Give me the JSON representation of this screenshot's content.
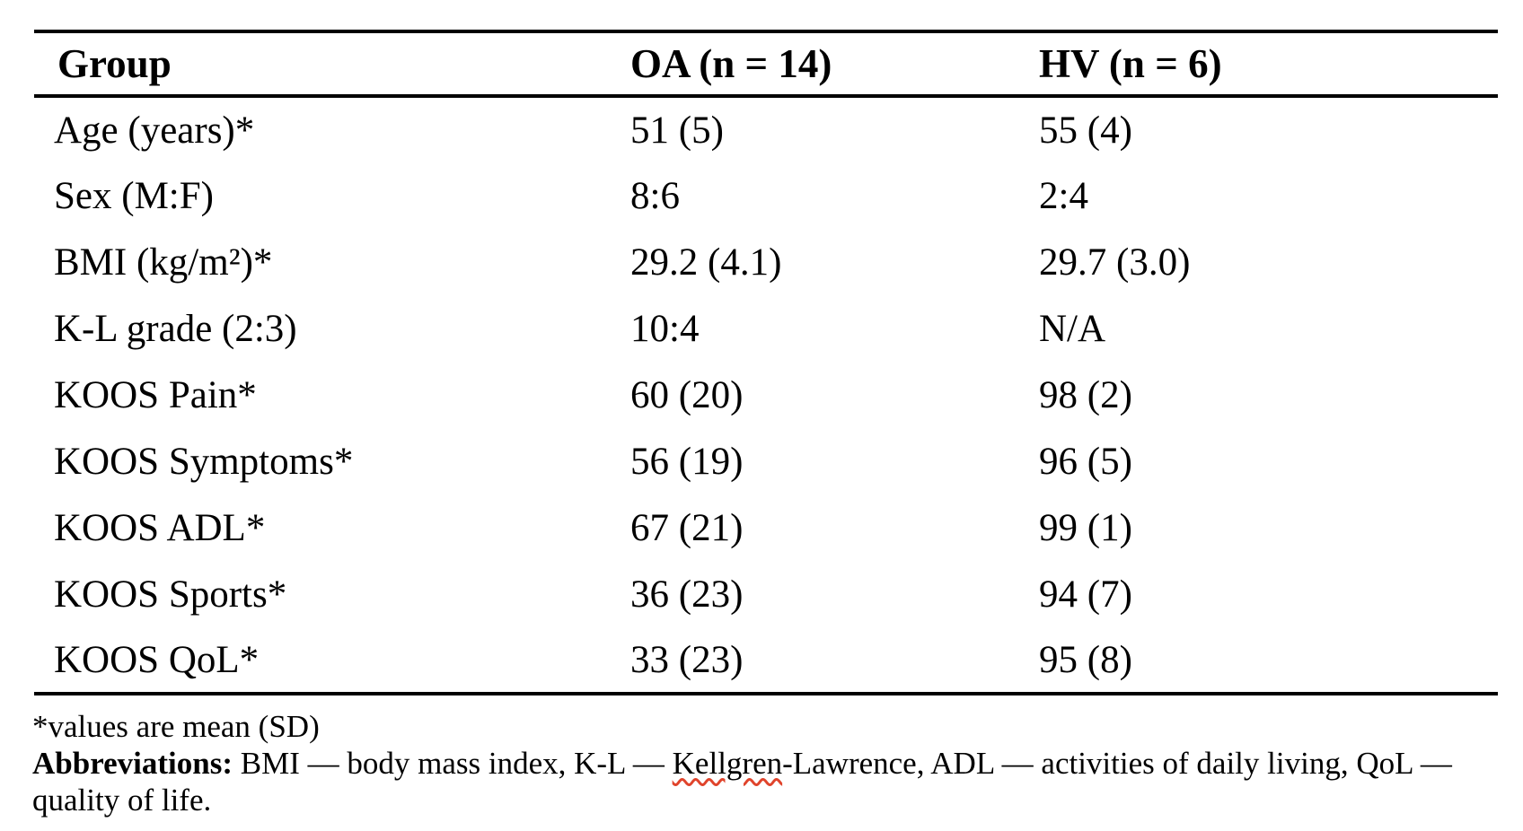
{
  "table": {
    "columns": [
      {
        "label": "Group"
      },
      {
        "label": "OA (n = 14)"
      },
      {
        "label": "HV (n = 6)"
      }
    ],
    "rows": [
      {
        "label": "Age (years)*",
        "oa": "51 (5)",
        "hv": "55 (4)"
      },
      {
        "label": "Sex (M:F)",
        "oa": "8:6",
        "hv": "2:4"
      },
      {
        "label": "BMI (kg/m²)*",
        "oa": "29.2 (4.1)",
        "hv": "29.7 (3.0)"
      },
      {
        "label": "K-L grade (2:3)",
        "oa": "10:4",
        "hv": "N/A"
      },
      {
        "label": "KOOS Pain*",
        "oa": "60 (20)",
        "hv": "98 (2)"
      },
      {
        "label": "KOOS Symptoms*",
        "oa": "56 (19)",
        "hv": "96 (5)"
      },
      {
        "label": "KOOS ADL*",
        "oa": "67 (21)",
        "hv": "99 (1)"
      },
      {
        "label": "KOOS Sports*",
        "oa": "36 (23)",
        "hv": "94 (7)"
      },
      {
        "label": "KOOS QoL*",
        "oa": "33 (23)",
        "hv": "95 (8)"
      }
    ]
  },
  "footnotes": {
    "mean_sd": "*values are mean (SD)",
    "abbreviations_label": "Abbreviations:",
    "abbr_part1": " BMI — body mass index, K-L — ",
    "flagged_word": "Kellgren",
    "abbr_part2": "-Lawrence, ADL — activities of daily living, QoL —",
    "abbr_part3": "quality of life."
  },
  "colors": {
    "text": "#000000",
    "rule": "#000000",
    "spellcheck_underline": "#e0442c"
  }
}
